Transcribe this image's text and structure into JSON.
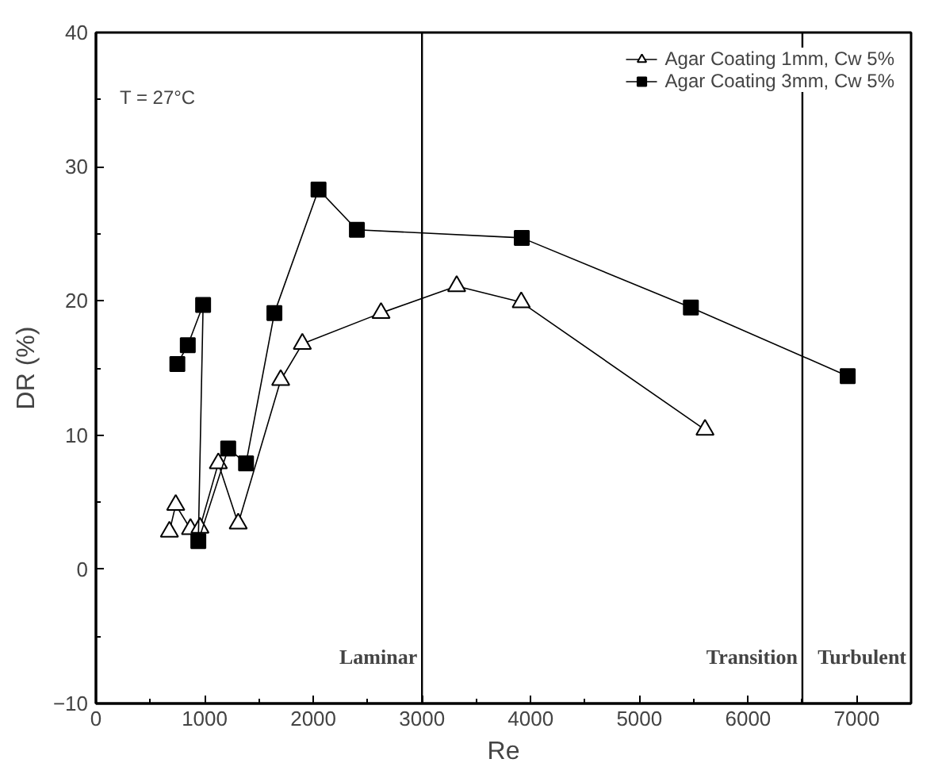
{
  "chart_data": {
    "type": "line",
    "xlabel": "Re",
    "ylabel": "DR (%)",
    "xlim": [
      0,
      7500
    ],
    "ylim": [
      -10,
      40
    ],
    "xticks": [
      0,
      1000,
      2000,
      3000,
      4000,
      5000,
      6000,
      7000
    ],
    "yticks": [
      -10,
      0,
      10,
      20,
      30,
      40
    ],
    "grid": false,
    "legend": "top right",
    "series": [
      {
        "name": "Agar Coating 1mm, Cw 5%",
        "color": "#000000",
        "marker": "triangle",
        "x": [
          676,
          734,
          870,
          957,
          1126,
          1309,
          1700,
          1899,
          2623,
          3319,
          3913,
          5604
        ],
        "values": [
          2.8,
          4.8,
          3.0,
          3.1,
          7.9,
          3.4,
          14.1,
          16.8,
          19.1,
          21.1,
          19.9,
          10.4
        ]
      },
      {
        "name": "Agar Coating 3mm, Cw 5%",
        "color": "#000000",
        "marker": "square",
        "x": [
          749,
          845,
          986,
          942,
          1217,
          1381,
          1642,
          2048,
          2401,
          3918,
          5474,
          6917
        ],
        "values": [
          15.3,
          16.7,
          19.7,
          2.1,
          9.0,
          7.9,
          19.1,
          28.3,
          25.3,
          24.7,
          19.5,
          14.4
        ]
      }
    ],
    "ref_lines": [
      {
        "axis": "x",
        "value": 3000,
        "color": "#000000"
      },
      {
        "axis": "x",
        "value": 6500,
        "color": "#000000"
      }
    ],
    "annotations": [
      "T = 27°C",
      "Laminar",
      "Transition",
      "Turbulent"
    ]
  }
}
